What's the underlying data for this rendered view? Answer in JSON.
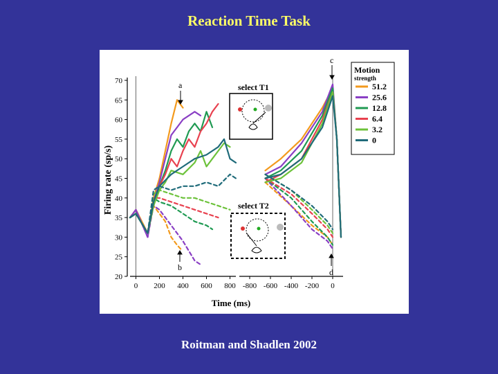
{
  "slide": {
    "title": "Reaction Time Task",
    "caption": "Roitman and Shadlen 2002"
  },
  "chart_data": {
    "type": "line",
    "ylabel": "Firing rate (sp/s)",
    "xlabel": "Time (ms)",
    "ylim": [
      20,
      70
    ],
    "y_ticks": [
      "20",
      "25",
      "30",
      "35",
      "40",
      "45",
      "50",
      "55",
      "60",
      "65",
      "70"
    ],
    "left_panel": {
      "xlim": [
        -50,
        850
      ],
      "x_ticks": [
        "0",
        "200",
        "400",
        "600",
        "800"
      ],
      "inset_label": "select T1",
      "inset_label_t2": "select T2"
    },
    "right_panel": {
      "xlim": [
        -900,
        100
      ],
      "x_ticks": [
        "-800",
        "-600",
        "-400",
        "-200",
        "0"
      ]
    },
    "annotations": [
      "a",
      "b",
      "c",
      "d"
    ],
    "legend": {
      "title": "Motion",
      "subtitle": "strength",
      "entries": [
        {
          "label": "51.2",
          "color": "#f39a1d"
        },
        {
          "label": "25.6",
          "color": "#8a3fc4"
        },
        {
          "label": "12.8",
          "color": "#1f9a52"
        },
        {
          "label": "6.4",
          "color": "#e8414f"
        },
        {
          "label": "3.2",
          "color": "#6cc23a"
        },
        {
          "label": "0",
          "color": "#1f6b7a"
        }
      ]
    },
    "series": [
      {
        "name": "51.2",
        "color": "#f39a1d",
        "left_T1": [
          [
            -50,
            35
          ],
          [
            0,
            37
          ],
          [
            100,
            31
          ],
          [
            150,
            40
          ],
          [
            200,
            45
          ],
          [
            250,
            52
          ],
          [
            300,
            59
          ],
          [
            350,
            65
          ],
          [
            400,
            63
          ]
        ],
        "left_T2": [
          [
            -50,
            35
          ],
          [
            0,
            37
          ],
          [
            100,
            31
          ],
          [
            150,
            38
          ],
          [
            200,
            36
          ],
          [
            250,
            34
          ],
          [
            300,
            30
          ],
          [
            350,
            28
          ],
          [
            380,
            27
          ]
        ],
        "right_T1": [
          [
            -650,
            47
          ],
          [
            -500,
            50
          ],
          [
            -300,
            55
          ],
          [
            -100,
            63
          ],
          [
            0,
            68
          ],
          [
            40,
            55
          ],
          [
            80,
            30
          ]
        ],
        "right_T2": [
          [
            -650,
            44
          ],
          [
            -400,
            38
          ],
          [
            -200,
            33
          ],
          [
            -50,
            30
          ],
          [
            0,
            28
          ]
        ]
      },
      {
        "name": "25.6",
        "color": "#8a3fc4",
        "left_T1": [
          [
            -50,
            35
          ],
          [
            0,
            37
          ],
          [
            100,
            30
          ],
          [
            150,
            39
          ],
          [
            200,
            44
          ],
          [
            250,
            50
          ],
          [
            300,
            56
          ],
          [
            400,
            60
          ],
          [
            500,
            62
          ],
          [
            550,
            61
          ]
        ],
        "left_T2": [
          [
            -50,
            35
          ],
          [
            0,
            37
          ],
          [
            100,
            30
          ],
          [
            150,
            38
          ],
          [
            200,
            37
          ],
          [
            300,
            33
          ],
          [
            400,
            29
          ],
          [
            500,
            24
          ],
          [
            550,
            23
          ]
        ],
        "right_T1": [
          [
            -650,
            46
          ],
          [
            -500,
            48
          ],
          [
            -300,
            54
          ],
          [
            -100,
            62
          ],
          [
            0,
            69
          ],
          [
            40,
            55
          ],
          [
            80,
            30
          ]
        ],
        "right_T2": [
          [
            -650,
            45
          ],
          [
            -400,
            38
          ],
          [
            -200,
            32
          ],
          [
            -50,
            29
          ],
          [
            0,
            27
          ]
        ]
      },
      {
        "name": "12.8",
        "color": "#1f9a52",
        "left_T1": [
          [
            -50,
            35
          ],
          [
            0,
            36
          ],
          [
            100,
            31
          ],
          [
            150,
            39
          ],
          [
            200,
            43
          ],
          [
            250,
            47
          ],
          [
            300,
            52
          ],
          [
            350,
            55
          ],
          [
            400,
            53
          ],
          [
            450,
            57
          ],
          [
            500,
            59
          ],
          [
            550,
            57
          ],
          [
            600,
            62
          ],
          [
            650,
            58
          ]
        ],
        "left_T2": [
          [
            -50,
            35
          ],
          [
            0,
            36
          ],
          [
            100,
            31
          ],
          [
            150,
            40
          ],
          [
            200,
            39
          ],
          [
            300,
            38
          ],
          [
            400,
            36
          ],
          [
            500,
            34
          ],
          [
            600,
            33
          ],
          [
            650,
            32
          ]
        ],
        "right_T1": [
          [
            -650,
            45
          ],
          [
            -500,
            47
          ],
          [
            -300,
            52
          ],
          [
            -100,
            61
          ],
          [
            0,
            68
          ],
          [
            40,
            55
          ],
          [
            80,
            30
          ]
        ],
        "right_T2": [
          [
            -650,
            45
          ],
          [
            -400,
            40
          ],
          [
            -200,
            34
          ],
          [
            -50,
            30
          ],
          [
            0,
            28
          ]
        ]
      },
      {
        "name": "6.4",
        "color": "#e8414f",
        "left_T1": [
          [
            -50,
            35
          ],
          [
            0,
            36
          ],
          [
            100,
            31
          ],
          [
            150,
            38
          ],
          [
            200,
            43
          ],
          [
            250,
            46
          ],
          [
            300,
            50
          ],
          [
            350,
            48
          ],
          [
            400,
            52
          ],
          [
            450,
            55
          ],
          [
            500,
            53
          ],
          [
            550,
            57
          ],
          [
            600,
            59
          ],
          [
            650,
            62
          ],
          [
            700,
            64
          ]
        ],
        "left_T2": [
          [
            -50,
            35
          ],
          [
            0,
            36
          ],
          [
            100,
            31
          ],
          [
            150,
            40
          ],
          [
            200,
            40
          ],
          [
            300,
            39
          ],
          [
            400,
            38
          ],
          [
            500,
            37
          ],
          [
            600,
            36
          ],
          [
            700,
            35
          ]
        ],
        "right_T1": [
          [
            -650,
            44
          ],
          [
            -500,
            46
          ],
          [
            -300,
            50
          ],
          [
            -100,
            60
          ],
          [
            0,
            67
          ],
          [
            40,
            55
          ],
          [
            80,
            30
          ]
        ],
        "right_T2": [
          [
            -650,
            45
          ],
          [
            -400,
            41
          ],
          [
            -200,
            36
          ],
          [
            -50,
            32
          ],
          [
            0,
            30
          ]
        ]
      },
      {
        "name": "3.2",
        "color": "#6cc23a",
        "left_T1": [
          [
            -50,
            35
          ],
          [
            0,
            36
          ],
          [
            100,
            31
          ],
          [
            150,
            38
          ],
          [
            200,
            42
          ],
          [
            250,
            44
          ],
          [
            300,
            47
          ],
          [
            400,
            46
          ],
          [
            500,
            49
          ],
          [
            550,
            52
          ],
          [
            600,
            48
          ],
          [
            650,
            50
          ],
          [
            700,
            52
          ],
          [
            750,
            54
          ],
          [
            800,
            53
          ]
        ],
        "left_T2": [
          [
            -50,
            35
          ],
          [
            0,
            36
          ],
          [
            100,
            31
          ],
          [
            150,
            41
          ],
          [
            200,
            42
          ],
          [
            300,
            41
          ],
          [
            400,
            40
          ],
          [
            500,
            40
          ],
          [
            600,
            39
          ],
          [
            700,
            38
          ],
          [
            800,
            37
          ]
        ],
        "right_T1": [
          [
            -650,
            44
          ],
          [
            -500,
            45
          ],
          [
            -300,
            49
          ],
          [
            -100,
            59
          ],
          [
            0,
            67
          ],
          [
            40,
            55
          ],
          [
            80,
            30
          ]
        ],
        "right_T2": [
          [
            -650,
            46
          ],
          [
            -400,
            42
          ],
          [
            -200,
            37
          ],
          [
            -50,
            33
          ],
          [
            0,
            31
          ]
        ]
      },
      {
        "name": "0",
        "color": "#1f6b7a",
        "left_T1": [
          [
            -50,
            35
          ],
          [
            0,
            36
          ],
          [
            100,
            31
          ],
          [
            150,
            39
          ],
          [
            200,
            43
          ],
          [
            300,
            46
          ],
          [
            400,
            48
          ],
          [
            500,
            50
          ],
          [
            600,
            51
          ],
          [
            700,
            53
          ],
          [
            750,
            55
          ],
          [
            800,
            50
          ],
          [
            850,
            49
          ]
        ],
        "left_T2": [
          [
            -50,
            35
          ],
          [
            0,
            36
          ],
          [
            100,
            31
          ],
          [
            150,
            42
          ],
          [
            200,
            43
          ],
          [
            300,
            42
          ],
          [
            400,
            43
          ],
          [
            500,
            43
          ],
          [
            600,
            44
          ],
          [
            700,
            43
          ],
          [
            800,
            46
          ],
          [
            850,
            45
          ]
        ],
        "right_T1": [
          [
            -650,
            45
          ],
          [
            -500,
            46
          ],
          [
            -300,
            50
          ],
          [
            -100,
            58
          ],
          [
            0,
            66
          ],
          [
            40,
            55
          ],
          [
            80,
            30
          ]
        ],
        "right_T2": [
          [
            -650,
            46
          ],
          [
            -400,
            42
          ],
          [
            -200,
            38
          ],
          [
            -50,
            34
          ],
          [
            0,
            32
          ]
        ]
      }
    ]
  }
}
